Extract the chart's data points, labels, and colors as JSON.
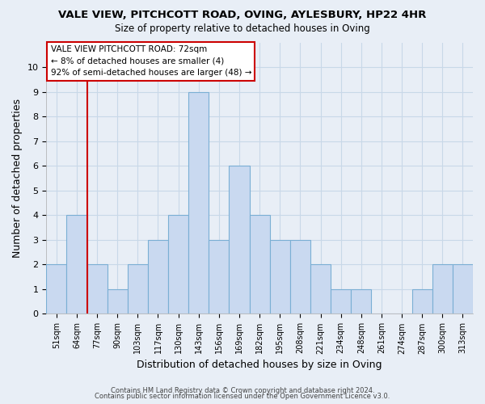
{
  "title": "VALE VIEW, PITCHCOTT ROAD, OVING, AYLESBURY, HP22 4HR",
  "subtitle": "Size of property relative to detached houses in Oving",
  "xlabel": "Distribution of detached houses by size in Oving",
  "ylabel": "Number of detached properties",
  "bin_labels": [
    "51sqm",
    "64sqm",
    "77sqm",
    "90sqm",
    "103sqm",
    "117sqm",
    "130sqm",
    "143sqm",
    "156sqm",
    "169sqm",
    "182sqm",
    "195sqm",
    "208sqm",
    "221sqm",
    "234sqm",
    "248sqm",
    "261sqm",
    "274sqm",
    "287sqm",
    "300sqm",
    "313sqm"
  ],
  "bar_heights": [
    2,
    4,
    2,
    1,
    2,
    3,
    4,
    9,
    3,
    6,
    4,
    3,
    3,
    2,
    1,
    1,
    0,
    0,
    1,
    2,
    2
  ],
  "bar_color": "#c9d9f0",
  "bar_edge_color": "#7aafd4",
  "vline_x": 2,
  "vline_color": "#cc0000",
  "ylim": [
    0,
    11
  ],
  "yticks": [
    0,
    1,
    2,
    3,
    4,
    5,
    6,
    7,
    8,
    9,
    10
  ],
  "annotation_title": "VALE VIEW PITCHCOTT ROAD: 72sqm",
  "annotation_line1": "← 8% of detached houses are smaller (4)",
  "annotation_line2": "92% of semi-detached houses are larger (48) →",
  "annotation_box_color": "#ffffff",
  "annotation_box_edge": "#cc0000",
  "footer_line1": "Contains HM Land Registry data © Crown copyright and database right 2024.",
  "footer_line2": "Contains public sector information licensed under the Open Government Licence v3.0.",
  "grid_color": "#c8d8e8",
  "background_color": "#e8eef6"
}
